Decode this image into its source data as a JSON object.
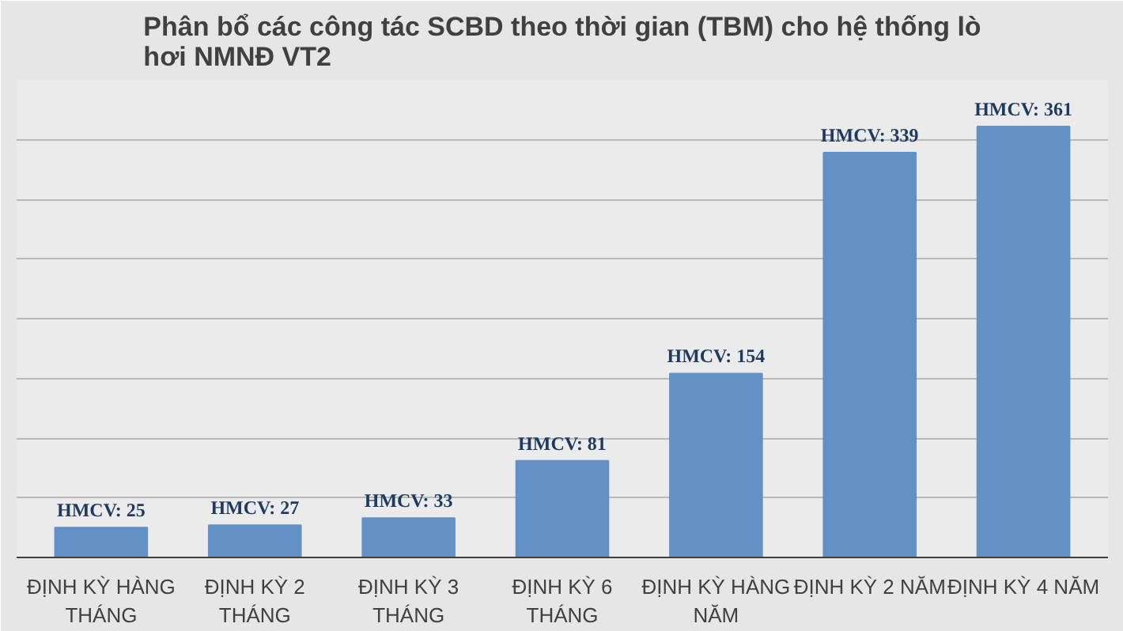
{
  "chart_data": {
    "type": "bar",
    "title": "Phân bổ các công tác SCBD theo thời gian (TBM) cho hệ thống lò hơi NMNĐ VT2",
    "categories": [
      "ĐỊNH KỲ HÀNG THÁNG",
      "ĐỊNH KỲ 2 THÁNG",
      "ĐỊNH KỲ 3 THÁNG",
      "ĐỊNH KỲ 6 THÁNG",
      "ĐỊNH KỲ HÀNG NĂM",
      "ĐỊNH KỲ 2 NĂM",
      "ĐỊNH KỲ 4 NĂM"
    ],
    "values": [
      25,
      27,
      33,
      81,
      154,
      339,
      361
    ],
    "value_labels": [
      "HMCV: 25",
      "HMCV: 27",
      "HMCV: 33",
      "HMCV: 81",
      "HMCV: 154",
      "HMCV: 339",
      "HMCV: 361"
    ],
    "color": "#6391c6",
    "ylim": [
      0,
      400
    ],
    "yticks": [
      {
        "value": 0,
        "label": null
      },
      {
        "value": 50,
        "label": null
      },
      {
        "value": 100,
        "label": null
      },
      {
        "value": 150,
        "label": null
      },
      {
        "value": 200,
        "label": null
      },
      {
        "value": 250,
        "label": null
      },
      {
        "value": 300,
        "label": null
      },
      {
        "value": 350,
        "label": null
      },
      {
        "value": 400,
        "label": null
      }
    ],
    "grid": "y",
    "tick_labels": "x"
  }
}
